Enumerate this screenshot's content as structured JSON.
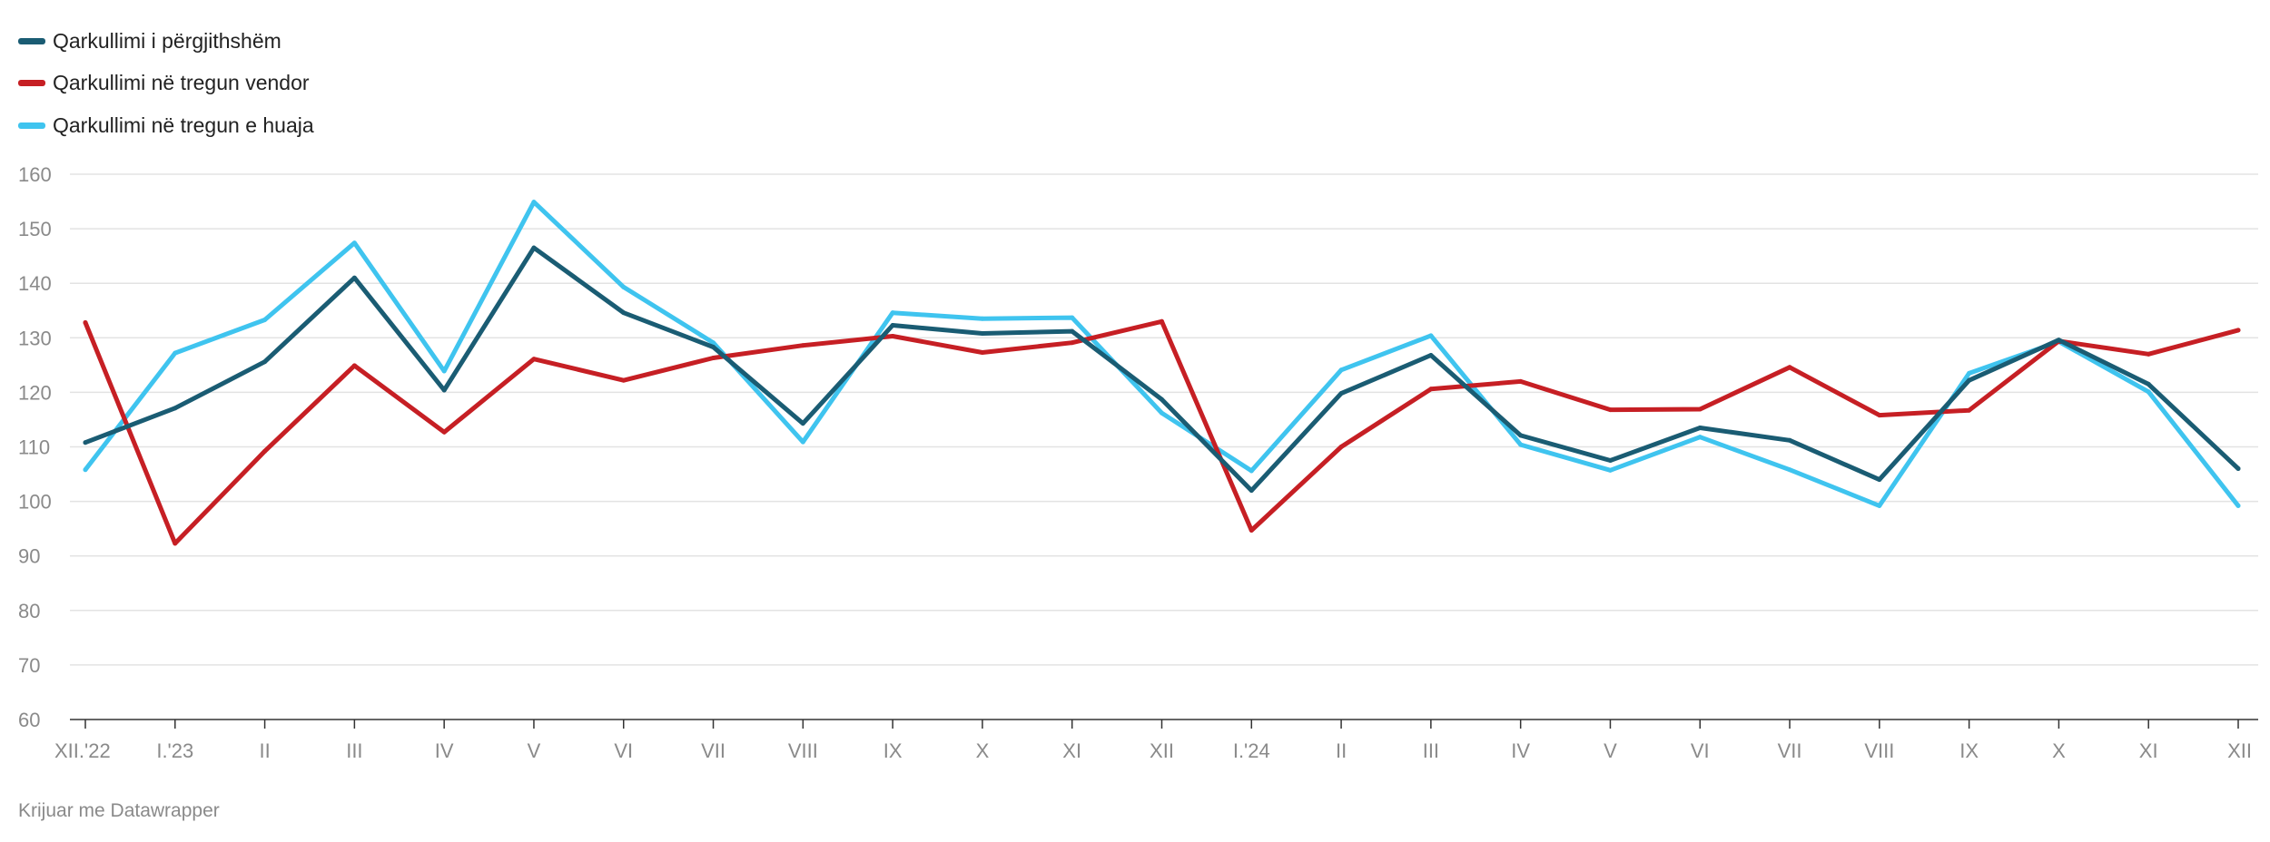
{
  "legend": [
    {
      "label": "Qarkullimi i përgjithshëm",
      "color": "#1a5c73"
    },
    {
      "label": "Qarkullimi në tregun vendor",
      "color": "#c61f24"
    },
    {
      "label": "Qarkullimi në tregun e huaja",
      "color": "#3fc4ef"
    }
  ],
  "footer": "Krijuar me Datawrapper",
  "chart_data": {
    "type": "line",
    "title": "",
    "xlabel": "",
    "ylabel": "",
    "ylim": [
      60,
      160
    ],
    "yticks": [
      60,
      70,
      80,
      90,
      100,
      110,
      120,
      130,
      140,
      150,
      160
    ],
    "grid": true,
    "legend_position": "top-left",
    "categories": [
      "XII.'22",
      "I.'23",
      "II",
      "III",
      "IV",
      "V",
      "VI",
      "VII",
      "VIII",
      "IX",
      "X",
      "XI",
      "XII",
      "I.'24",
      "II",
      "III",
      "IV",
      "V",
      "VI",
      "VII",
      "VIII",
      "IX",
      "X",
      "XI",
      "XII"
    ],
    "series": [
      {
        "name": "Qarkullimi i përgjithshëm",
        "color": "#1a5c73",
        "values": [
          110.8,
          117.1,
          125.6,
          141.0,
          120.4,
          146.5,
          134.6,
          128.3,
          114.3,
          132.3,
          130.8,
          131.2,
          118.7,
          102.0,
          119.8,
          126.8,
          112.1,
          107.5,
          113.5,
          111.2,
          104.0,
          122.2,
          129.6,
          121.5,
          106.0
        ]
      },
      {
        "name": "Qarkullimi në tregun vendor",
        "color": "#c61f24",
        "values": [
          132.8,
          92.3,
          109.2,
          124.9,
          112.7,
          126.1,
          122.2,
          126.3,
          128.6,
          130.3,
          127.3,
          129.1,
          133.0,
          94.7,
          110.0,
          120.6,
          122.0,
          116.8,
          116.9,
          124.6,
          115.8,
          116.7,
          129.4,
          127.0,
          131.4
        ]
      },
      {
        "name": "Qarkullimi në tregun e huaja",
        "color": "#3fc4ef",
        "values": [
          105.8,
          127.2,
          133.3,
          147.4,
          123.9,
          154.9,
          139.3,
          129.1,
          110.9,
          134.6,
          133.5,
          133.7,
          116.2,
          105.6,
          124.1,
          130.4,
          110.4,
          105.7,
          111.8,
          105.8,
          99.2,
          123.5,
          129.3,
          120.1,
          99.2
        ]
      }
    ]
  }
}
